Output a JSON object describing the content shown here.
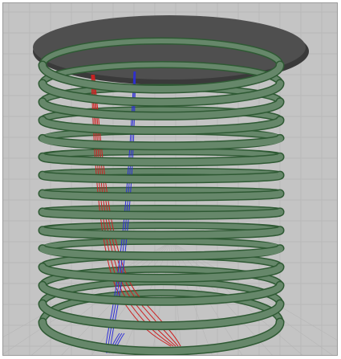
{
  "scene": {
    "background": "#c4c4c4",
    "grid_color": "#b6b6b6",
    "disk_color": "#4f4f4f",
    "disk_edge_color": "#3a3a3a",
    "coil_color": "#66876a",
    "coil_dark_color": "#2f5a34",
    "red_wire_color": "#cc2222",
    "blue_wire_color": "#2d2dd8",
    "coil_turns": 15,
    "red_wire_strands": 5,
    "blue_wire_strands": 3
  }
}
